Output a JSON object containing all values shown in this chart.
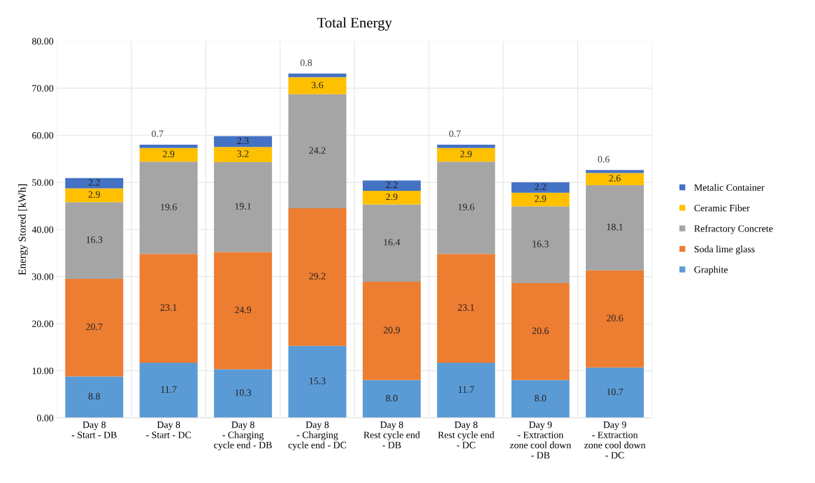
{
  "chart_data": {
    "type": "bar",
    "title": "Total Energy",
    "ylabel": "Energy Stored [kWh]",
    "stacked": true,
    "grid": true,
    "legend": "right",
    "categories": [
      "Day 8\n- Start - DB",
      "Day 8\n- Start - DC",
      "Day 8\n- Charging\ncycle end - DB",
      "Day 8\n- Charging\ncycle end - DC",
      "Day 8\nRest cycle end\n- DB",
      "Day 8\nRest cycle end\n- DC",
      "Day 9\n- Extraction\nzone cool down\n- DB",
      "Day 9\n- Extraction\nzone cool down\n- DC"
    ],
    "ylim": [
      0,
      80
    ],
    "yticks": [
      {
        "value": 0,
        "label": "0.00"
      },
      {
        "value": 10,
        "label": "10.00"
      },
      {
        "value": 20,
        "label": "20.00"
      },
      {
        "value": 30,
        "label": "30.00"
      },
      {
        "value": 40,
        "label": "40.00"
      },
      {
        "value": 50,
        "label": "50.00"
      },
      {
        "value": 60,
        "label": "60.00"
      },
      {
        "value": 70,
        "label": "70.00"
      },
      {
        "value": 80,
        "label": "80.00"
      }
    ],
    "series": [
      {
        "name": "Graphite",
        "color": "#5b9bd5",
        "values": [
          8.8,
          11.7,
          10.3,
          15.3,
          8.0,
          11.7,
          8.0,
          10.7
        ],
        "value_labels": [
          "8.8",
          "11.7",
          "10.3",
          "15.3",
          "8.0",
          "11.7",
          "8.0",
          "10.7"
        ]
      },
      {
        "name": "Soda lime glass",
        "color": "#ed7d31",
        "values": [
          20.7,
          23.1,
          24.9,
          29.2,
          20.9,
          23.1,
          20.6,
          20.6
        ],
        "value_labels": [
          "20.7",
          "23.1",
          "24.9",
          "29.2",
          "20.9",
          "23.1",
          "20.6",
          "20.6"
        ]
      },
      {
        "name": "Refractory Concrete",
        "color": "#a5a5a5",
        "values": [
          16.3,
          19.6,
          19.1,
          24.2,
          16.4,
          19.6,
          16.3,
          18.1
        ],
        "value_labels": [
          "16.3",
          "19.6",
          "19.1",
          "24.2",
          "16.4",
          "19.6",
          "16.3",
          "18.1"
        ]
      },
      {
        "name": "Ceramic Fiber",
        "color": "#ffc000",
        "values": [
          2.9,
          2.9,
          3.2,
          3.6,
          2.9,
          2.9,
          2.9,
          2.6
        ],
        "value_labels": [
          "2.9",
          "2.9",
          "3.2",
          "3.6",
          "2.9",
          "2.9",
          "2.9",
          "2.6"
        ]
      },
      {
        "name": "Metalic Container",
        "color": "#4472c4",
        "values": [
          2.2,
          0.7,
          2.3,
          0.8,
          2.2,
          0.7,
          2.2,
          0.6
        ],
        "value_labels": [
          "2.2",
          "0.7",
          "2.3",
          "0.8",
          "2.2",
          "0.7",
          "2.2",
          "0.6"
        ]
      }
    ]
  }
}
